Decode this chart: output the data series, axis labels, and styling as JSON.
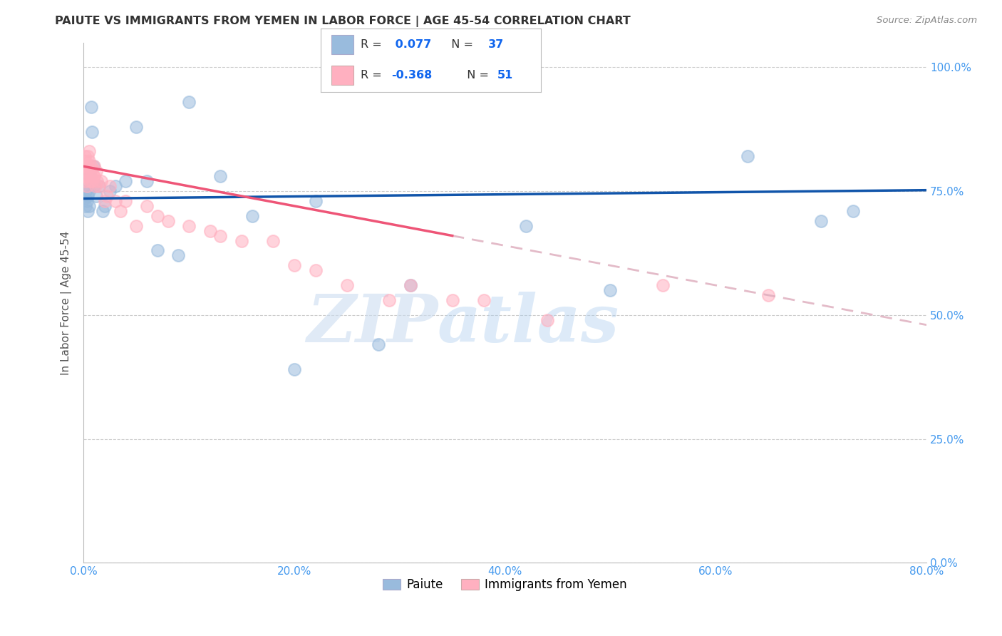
{
  "title": "PAIUTE VS IMMIGRANTS FROM YEMEN IN LABOR FORCE | AGE 45-54 CORRELATION CHART",
  "source": "Source: ZipAtlas.com",
  "xlabel_ticks": [
    "0.0%",
    "20.0%",
    "40.0%",
    "60.0%",
    "80.0%"
  ],
  "ylabel_ticks": [
    "0.0%",
    "25.0%",
    "50.0%",
    "75.0%",
    "100.0%"
  ],
  "ylabel_label": "In Labor Force | Age 45-54",
  "legend_label1": "Paiute",
  "legend_label2": "Immigrants from Yemen",
  "R1": 0.077,
  "N1": 37,
  "R2": -0.368,
  "N2": 51,
  "color_blue": "#99BBDD",
  "color_pink": "#FFB0C0",
  "trendline1_color": "#1155AA",
  "trendline2_color": "#EE5577",
  "trendline2_dash_color": "#DDAABB",
  "watermark_zip": "ZIP",
  "watermark_atlas": "atlas",
  "xlim": [
    0.0,
    0.8
  ],
  "ylim": [
    0.0,
    1.05
  ],
  "blue_points_x": [
    0.001,
    0.002,
    0.002,
    0.003,
    0.003,
    0.004,
    0.004,
    0.005,
    0.005,
    0.006,
    0.007,
    0.008,
    0.009,
    0.01,
    0.012,
    0.015,
    0.018,
    0.02,
    0.025,
    0.03,
    0.04,
    0.05,
    0.06,
    0.07,
    0.09,
    0.1,
    0.13,
    0.16,
    0.2,
    0.22,
    0.28,
    0.31,
    0.42,
    0.5,
    0.63,
    0.7,
    0.73
  ],
  "blue_points_y": [
    0.735,
    0.75,
    0.72,
    0.76,
    0.73,
    0.74,
    0.71,
    0.75,
    0.72,
    0.78,
    0.92,
    0.87,
    0.8,
    0.76,
    0.74,
    0.76,
    0.71,
    0.72,
    0.75,
    0.76,
    0.77,
    0.88,
    0.77,
    0.63,
    0.62,
    0.93,
    0.78,
    0.7,
    0.39,
    0.73,
    0.44,
    0.56,
    0.68,
    0.55,
    0.82,
    0.69,
    0.71
  ],
  "pink_points_x": [
    0.001,
    0.001,
    0.001,
    0.002,
    0.002,
    0.002,
    0.003,
    0.003,
    0.003,
    0.004,
    0.004,
    0.005,
    0.005,
    0.006,
    0.006,
    0.007,
    0.007,
    0.008,
    0.009,
    0.01,
    0.01,
    0.011,
    0.012,
    0.013,
    0.015,
    0.017,
    0.02,
    0.022,
    0.025,
    0.03,
    0.035,
    0.04,
    0.05,
    0.06,
    0.07,
    0.08,
    0.1,
    0.12,
    0.13,
    0.15,
    0.18,
    0.2,
    0.22,
    0.25,
    0.29,
    0.31,
    0.35,
    0.38,
    0.44,
    0.55,
    0.65
  ],
  "pink_points_y": [
    0.82,
    0.8,
    0.78,
    0.81,
    0.79,
    0.77,
    0.8,
    0.78,
    0.76,
    0.82,
    0.8,
    0.83,
    0.81,
    0.79,
    0.77,
    0.8,
    0.78,
    0.77,
    0.78,
    0.8,
    0.78,
    0.76,
    0.79,
    0.77,
    0.76,
    0.77,
    0.73,
    0.74,
    0.76,
    0.73,
    0.71,
    0.73,
    0.68,
    0.72,
    0.7,
    0.69,
    0.68,
    0.67,
    0.66,
    0.65,
    0.65,
    0.6,
    0.59,
    0.56,
    0.53,
    0.56,
    0.53,
    0.53,
    0.49,
    0.56,
    0.54
  ]
}
